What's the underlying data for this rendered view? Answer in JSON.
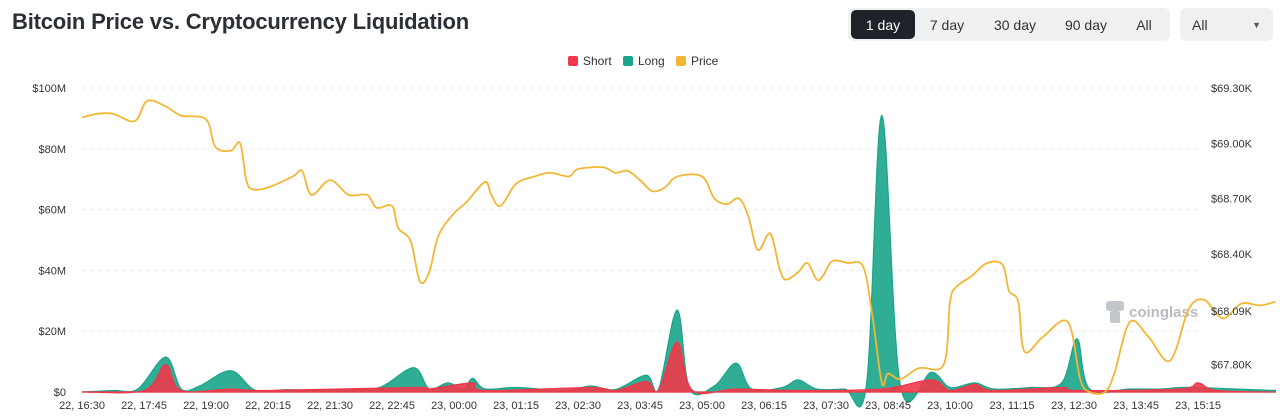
{
  "header": {
    "title": "Bitcoin Price vs. Cryptocurrency Liquidation"
  },
  "range_buttons": [
    {
      "label": "1 day",
      "active": true
    },
    {
      "label": "7 day",
      "active": false
    },
    {
      "label": "30 day",
      "active": false
    },
    {
      "label": "90 day",
      "active": false
    },
    {
      "label": "All",
      "active": false
    }
  ],
  "coin_select": {
    "value": "All"
  },
  "watermark": {
    "text": "coinglass"
  },
  "colors": {
    "short": "#f0384a",
    "long": "#1aa58a",
    "price": "#f2b735",
    "active_bg": "#1e2329"
  },
  "chart_data": {
    "type": "area",
    "title": "Bitcoin Price vs. Cryptocurrency Liquidation",
    "legend": [
      "Short",
      "Long",
      "Price"
    ],
    "y_left": {
      "min": 0,
      "max": 100,
      "unit": "M",
      "ticks": [
        "$0",
        "$20M",
        "$40M",
        "$60M",
        "$80M",
        "$100M"
      ]
    },
    "y_right": {
      "min": 67.65,
      "max": 69.3,
      "unit": "K",
      "ticks": [
        "$67.80K",
        "$68.09K",
        "$68.40K",
        "$68.70K",
        "$69.00K",
        "$69.30K"
      ]
    },
    "x_ticks": [
      "22, 16:30",
      "22, 17:45",
      "22, 19:00",
      "22, 20:15",
      "22, 21:30",
      "22, 22:45",
      "23, 00:00",
      "23, 01:15",
      "23, 02:30",
      "23, 03:45",
      "23, 05:00",
      "23, 06:15",
      "23, 07:30",
      "23, 08:45",
      "23, 10:00",
      "23, 11:15",
      "23, 12:30",
      "23, 13:45",
      "23, 15:15"
    ],
    "series": [
      {
        "name": "Price",
        "axis": "right",
        "points": [
          [
            0,
            69.14
          ],
          [
            0.25,
            69.16
          ],
          [
            0.5,
            69.16
          ],
          [
            0.85,
            69.12
          ],
          [
            1.05,
            69.23
          ],
          [
            1.35,
            69.2
          ],
          [
            1.6,
            69.15
          ],
          [
            2.0,
            69.13
          ],
          [
            2.15,
            68.98
          ],
          [
            2.4,
            68.96
          ],
          [
            2.55,
            69.0
          ],
          [
            2.65,
            68.8
          ],
          [
            2.75,
            68.75
          ],
          [
            3.0,
            68.76
          ],
          [
            3.4,
            68.82
          ],
          [
            3.55,
            68.85
          ],
          [
            3.7,
            68.72
          ],
          [
            4.0,
            68.8
          ],
          [
            4.3,
            68.72
          ],
          [
            4.6,
            68.72
          ],
          [
            4.75,
            68.65
          ],
          [
            5.0,
            68.66
          ],
          [
            5.1,
            68.54
          ],
          [
            5.3,
            68.47
          ],
          [
            5.45,
            68.25
          ],
          [
            5.6,
            68.3
          ],
          [
            5.75,
            68.5
          ],
          [
            6.0,
            68.62
          ],
          [
            6.2,
            68.68
          ],
          [
            6.5,
            68.79
          ],
          [
            6.6,
            68.72
          ],
          [
            6.75,
            68.66
          ],
          [
            7.0,
            68.78
          ],
          [
            7.3,
            68.82
          ],
          [
            7.55,
            68.84
          ],
          [
            7.85,
            68.82
          ],
          [
            8.0,
            68.86
          ],
          [
            8.4,
            68.87
          ],
          [
            8.6,
            68.84
          ],
          [
            8.8,
            68.85
          ],
          [
            9.0,
            68.8
          ],
          [
            9.2,
            68.74
          ],
          [
            9.4,
            68.76
          ],
          [
            9.6,
            68.82
          ],
          [
            10.0,
            68.82
          ],
          [
            10.2,
            68.7
          ],
          [
            10.4,
            68.67
          ],
          [
            10.6,
            68.7
          ],
          [
            10.75,
            68.6
          ],
          [
            10.9,
            68.42
          ],
          [
            11.1,
            68.51
          ],
          [
            11.25,
            68.32
          ],
          [
            11.35,
            68.26
          ],
          [
            11.55,
            68.3
          ],
          [
            11.7,
            68.35
          ],
          [
            11.85,
            68.26
          ],
          [
            11.95,
            68.28
          ],
          [
            12.1,
            68.36
          ],
          [
            12.35,
            68.35
          ],
          [
            12.6,
            68.33
          ],
          [
            12.75,
            68.06
          ],
          [
            12.9,
            67.7
          ],
          [
            13.0,
            67.75
          ],
          [
            13.2,
            67.72
          ],
          [
            13.5,
            67.78
          ],
          [
            13.9,
            67.8
          ],
          [
            14.0,
            68.14
          ],
          [
            14.1,
            68.22
          ],
          [
            14.35,
            68.28
          ],
          [
            14.6,
            68.35
          ],
          [
            14.85,
            68.34
          ],
          [
            14.95,
            68.2
          ],
          [
            15.1,
            68.14
          ],
          [
            15.2,
            67.87
          ],
          [
            15.5,
            67.95
          ],
          [
            15.9,
            68.03
          ],
          [
            16.1,
            67.72
          ],
          [
            16.25,
            67.65
          ],
          [
            16.5,
            67.65
          ],
          [
            16.65,
            67.75
          ],
          [
            16.9,
            68.03
          ],
          [
            17.2,
            67.95
          ],
          [
            17.55,
            67.82
          ],
          [
            17.85,
            68.1
          ],
          [
            18.1,
            68.15
          ],
          [
            18.4,
            68.05
          ],
          [
            18.7,
            68.13
          ],
          [
            19.0,
            68.12
          ],
          [
            19.25,
            68.14
          ]
        ]
      },
      {
        "name": "Long",
        "axis": "left",
        "points": [
          [
            0,
            0
          ],
          [
            0.5,
            0.5
          ],
          [
            0.9,
            1
          ],
          [
            1.35,
            11.5
          ],
          [
            1.6,
            1
          ],
          [
            1.9,
            2
          ],
          [
            2.4,
            7
          ],
          [
            2.8,
            0.5
          ],
          [
            3.3,
            0.8
          ],
          [
            3.8,
            0.5
          ],
          [
            4.2,
            0.8
          ],
          [
            4.8,
            1.5
          ],
          [
            5.35,
            8
          ],
          [
            5.6,
            1
          ],
          [
            5.9,
            3
          ],
          [
            6.15,
            1
          ],
          [
            6.3,
            4.5
          ],
          [
            6.5,
            1
          ],
          [
            7.0,
            1.5
          ],
          [
            7.8,
            0.5
          ],
          [
            8.2,
            2
          ],
          [
            8.6,
            0.8
          ],
          [
            9.1,
            5.5
          ],
          [
            9.3,
            1
          ],
          [
            9.6,
            27
          ],
          [
            9.8,
            1
          ],
          [
            10.2,
            2
          ],
          [
            10.55,
            9.5
          ],
          [
            10.8,
            1
          ],
          [
            11.3,
            1.5
          ],
          [
            11.55,
            4
          ],
          [
            11.85,
            1
          ],
          [
            12.3,
            1
          ],
          [
            12.65,
            2
          ],
          [
            12.9,
            91
          ],
          [
            13.2,
            2
          ],
          [
            13.7,
            6.5
          ],
          [
            14.0,
            1.5
          ],
          [
            14.4,
            3
          ],
          [
            14.7,
            1
          ],
          [
            15.3,
            1.5
          ],
          [
            15.8,
            3
          ],
          [
            16.05,
            17.5
          ],
          [
            16.25,
            1
          ],
          [
            16.9,
            1
          ],
          [
            17.4,
            1
          ],
          [
            17.7,
            1.5
          ],
          [
            18.0,
            1.5
          ],
          [
            18.6,
            1
          ],
          [
            19.25,
            0.5
          ]
        ]
      },
      {
        "name": "Short",
        "axis": "left",
        "points": [
          [
            0,
            0
          ],
          [
            1.0,
            0.5
          ],
          [
            1.35,
            9
          ],
          [
            1.6,
            0.5
          ],
          [
            2.4,
            1
          ],
          [
            3.0,
            0.5
          ],
          [
            5.35,
            1.5
          ],
          [
            5.6,
            1
          ],
          [
            6.3,
            3
          ],
          [
            6.5,
            0.5
          ],
          [
            8.2,
            1.5
          ],
          [
            8.6,
            0.5
          ],
          [
            9.1,
            3.5
          ],
          [
            9.3,
            0.5
          ],
          [
            9.6,
            16.5
          ],
          [
            9.85,
            0.5
          ],
          [
            10.55,
            1
          ],
          [
            11.55,
            0.5
          ],
          [
            12.9,
            1
          ],
          [
            13.7,
            4
          ],
          [
            14.0,
            0.5
          ],
          [
            14.4,
            2.5
          ],
          [
            14.7,
            0.5
          ],
          [
            15.8,
            1.5
          ],
          [
            16.05,
            0.5
          ],
          [
            17.7,
            1
          ],
          [
            18.0,
            3
          ],
          [
            18.3,
            0.5
          ],
          [
            19.25,
            0
          ]
        ]
      }
    ]
  }
}
